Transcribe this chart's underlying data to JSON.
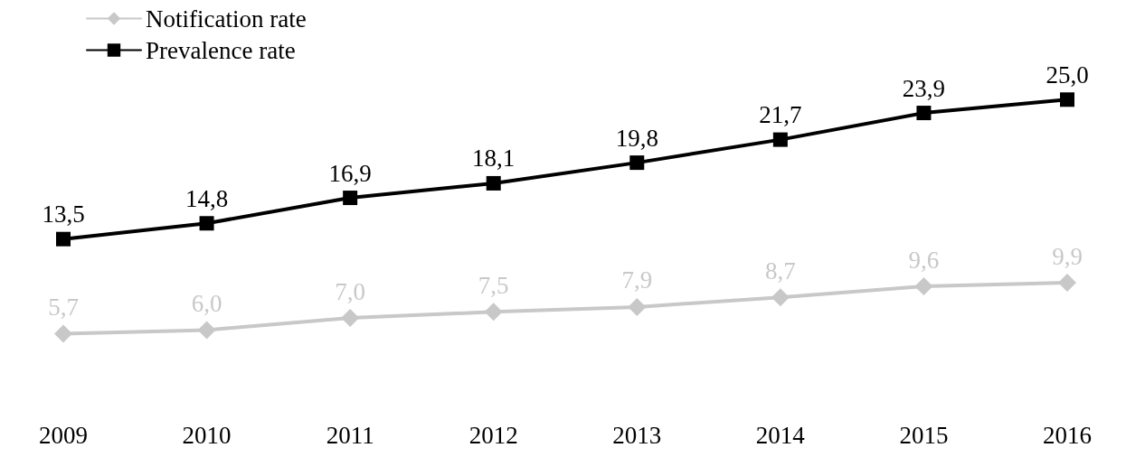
{
  "chart_data": {
    "type": "line",
    "categories": [
      "2009",
      "2010",
      "2011",
      "2012",
      "2013",
      "2014",
      "2015",
      "2016"
    ],
    "series": [
      {
        "name": "Notification rate",
        "color": "#c8c8c8",
        "marker": "diamond",
        "values": [
          5.7,
          6.0,
          7.0,
          7.5,
          7.9,
          8.7,
          9.6,
          9.9
        ],
        "value_labels": [
          "5,7",
          "6,0",
          "7,0",
          "7,5",
          "7,9",
          "8,7",
          "9,6",
          "9,9"
        ]
      },
      {
        "name": "Prevalence rate",
        "color": "#000000",
        "marker": "square",
        "values": [
          13.5,
          14.8,
          16.9,
          18.1,
          19.8,
          21.7,
          23.9,
          25.0
        ],
        "value_labels": [
          "13,5",
          "14,8",
          "16,9",
          "18,1",
          "19,8",
          "21,7",
          "23,9",
          "25,0"
        ]
      }
    ],
    "legend": "top left",
    "grid": false,
    "line_style": "solid"
  }
}
